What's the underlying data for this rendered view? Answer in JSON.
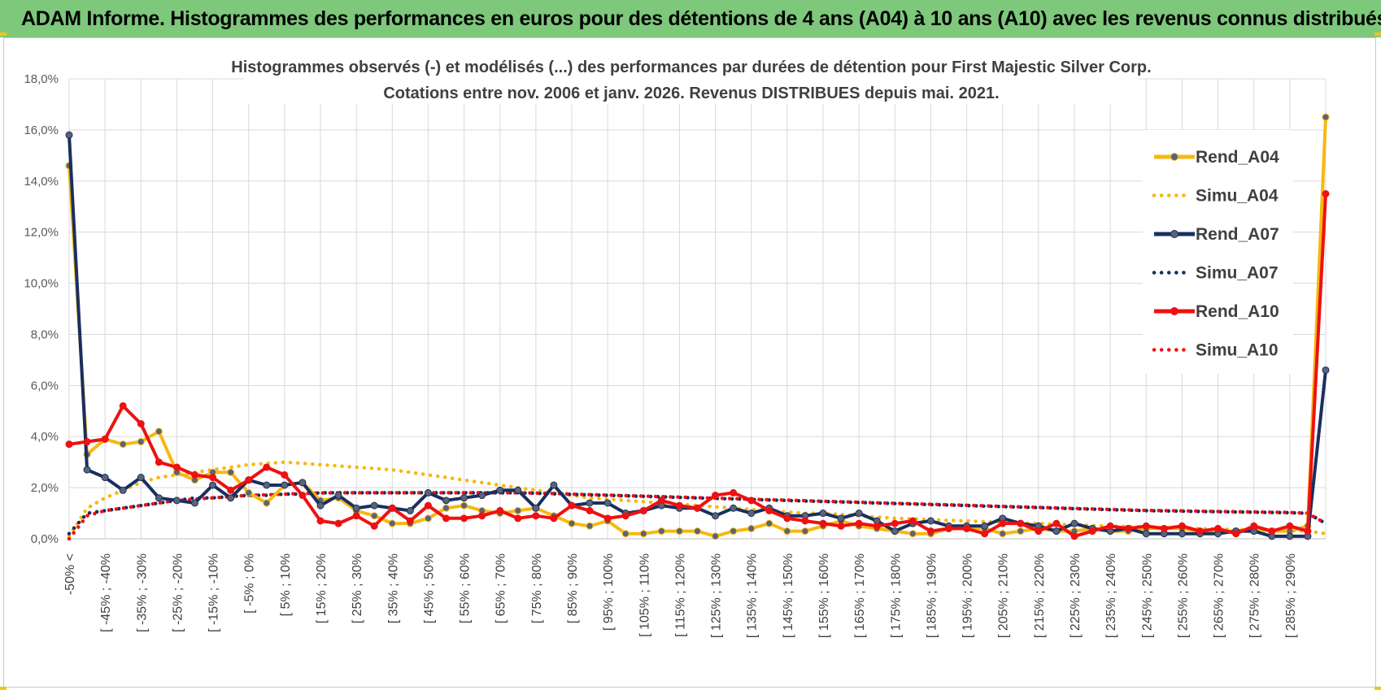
{
  "banner": {
    "title": "ADAM Informe. Histogrammes des performances en euros pour des détentions de 4 ans (A04) à 10 ans (A10) avec les revenus connus distribués"
  },
  "colors": {
    "banner": "#7dc87b",
    "yellow": "#f6b811",
    "navy": "#1a2f5e",
    "red": "#ee1111",
    "grid": "#d9d9d9"
  },
  "chart_data": {
    "type": "line",
    "title": [
      "Histogrammes observés (-) et modélisés (...) des performances par durées de détention pour First Majestic Silver Corp.",
      "Cotations entre nov. 2006 et janv. 2026. Revenus DISTRIBUES depuis mai. 2021."
    ],
    "xlabel": "",
    "ylabel": "",
    "ylim": [
      0,
      18
    ],
    "y_unit": "%",
    "yticks": [
      "0,0%",
      "2,0%",
      "4,0%",
      "6,0%",
      "8,0%",
      "10,0%",
      "12,0%",
      "14,0%",
      "16,0%",
      "18,0%"
    ],
    "grid": true,
    "legend_position": "top-right",
    "x_tick_labels": [
      "-50% <",
      "[ -45% ; -40%",
      "[ -35% ; -30%",
      "[ -25% ; -20%",
      "[ -15% ; -10%",
      "[ -5% ; 0%",
      "[ 5% ; 10%",
      "[ 15% ; 20%",
      "[ 25% ; 30%",
      "[ 35% ; 40%",
      "[ 45% ; 50%",
      "[ 55% ; 60%",
      "[ 65% ; 70%",
      "[ 75% ; 80%",
      "[ 85% ; 90%",
      "[ 95% ; 100%",
      "[ 105% ; 110%",
      "[ 115% ; 120%",
      "[ 125% ; 130%",
      "[ 135% ; 140%",
      "[ 145% ; 150%",
      "[ 155% ; 160%",
      "[ 165% ; 170%",
      "[ 175% ; 180%",
      "[ 185% ; 190%",
      "[ 195% ; 200%",
      "[ 205% ; 210%",
      "[ 215% ; 220%",
      "[ 225% ; 230%",
      "[ 235% ; 240%",
      "[ 245% ; 250%",
      "[ 255% ; 260%",
      "[ 265% ; 270%",
      "[ 275% ; 280%",
      "[ 285% ; 290%"
    ],
    "x_tick_every": 2,
    "n_points": 71,
    "series": [
      {
        "name": "Rend_A04",
        "style": "solid",
        "color": "#f6b811",
        "values": [
          14.6,
          3.3,
          3.9,
          3.7,
          3.8,
          4.2,
          2.6,
          2.3,
          2.6,
          2.6,
          1.8,
          1.4,
          2.1,
          2.2,
          1.5,
          1.6,
          1.1,
          0.9,
          0.6,
          0.6,
          0.8,
          1.2,
          1.3,
          1.1,
          1.0,
          1.1,
          1.2,
          0.9,
          0.6,
          0.5,
          0.7,
          0.2,
          0.2,
          0.3,
          0.3,
          0.3,
          0.1,
          0.3,
          0.4,
          0.6,
          0.3,
          0.3,
          0.5,
          0.7,
          0.5,
          0.4,
          0.3,
          0.2,
          0.2,
          0.4,
          0.4,
          0.4,
          0.2,
          0.3,
          0.4,
          0.3,
          0.3,
          0.4,
          0.3,
          0.3,
          0.4,
          0.4,
          0.4,
          0.3,
          0.3,
          0.3,
          0.4,
          0.3,
          0.3,
          0.5,
          16.5
        ]
      },
      {
        "name": "Simu_A04",
        "style": "dotted",
        "color": "#f6b811",
        "values": [
          0.1,
          1.2,
          1.6,
          1.9,
          2.2,
          2.4,
          2.5,
          2.6,
          2.7,
          2.8,
          2.9,
          2.95,
          3.0,
          2.95,
          2.9,
          2.85,
          2.8,
          2.75,
          2.7,
          2.6,
          2.5,
          2.4,
          2.3,
          2.2,
          2.1,
          2.0,
          1.9,
          1.8,
          1.7,
          1.6,
          1.55,
          1.5,
          1.45,
          1.4,
          1.35,
          1.3,
          1.25,
          1.2,
          1.15,
          1.1,
          1.05,
          1.0,
          1.0,
          0.95,
          0.9,
          0.85,
          0.8,
          0.78,
          0.75,
          0.72,
          0.7,
          0.67,
          0.65,
          0.62,
          0.6,
          0.57,
          0.55,
          0.52,
          0.5,
          0.48,
          0.46,
          0.44,
          0.42,
          0.4,
          0.38,
          0.36,
          0.34,
          0.33,
          0.32,
          0.3,
          0.2
        ]
      },
      {
        "name": "Rend_A07",
        "style": "solid",
        "color": "#1a2f5e",
        "values": [
          15.8,
          2.7,
          2.4,
          1.9,
          2.4,
          1.6,
          1.5,
          1.4,
          2.1,
          1.6,
          2.3,
          2.1,
          2.1,
          2.2,
          1.3,
          1.7,
          1.2,
          1.3,
          1.2,
          1.1,
          1.8,
          1.5,
          1.6,
          1.7,
          1.9,
          1.9,
          1.2,
          2.1,
          1.3,
          1.4,
          1.4,
          1.0,
          1.1,
          1.3,
          1.2,
          1.2,
          0.9,
          1.2,
          1.0,
          1.2,
          0.9,
          0.9,
          1.0,
          0.8,
          1.0,
          0.7,
          0.3,
          0.6,
          0.7,
          0.5,
          0.5,
          0.5,
          0.8,
          0.6,
          0.5,
          0.3,
          0.6,
          0.4,
          0.3,
          0.4,
          0.2,
          0.2,
          0.2,
          0.2,
          0.2,
          0.3,
          0.3,
          0.1,
          0.1,
          0.1,
          6.6
        ]
      },
      {
        "name": "Simu_A07",
        "style": "dotted",
        "color": "#1a2f5e",
        "values": [
          0.2,
          1.0,
          1.1,
          1.2,
          1.3,
          1.4,
          1.5,
          1.6,
          1.6,
          1.65,
          1.7,
          1.7,
          1.75,
          1.75,
          1.8,
          1.8,
          1.8,
          1.8,
          1.8,
          1.8,
          1.8,
          1.8,
          1.8,
          1.8,
          1.8,
          1.8,
          1.78,
          1.76,
          1.74,
          1.72,
          1.7,
          1.68,
          1.66,
          1.64,
          1.62,
          1.6,
          1.58,
          1.56,
          1.54,
          1.52,
          1.5,
          1.48,
          1.46,
          1.44,
          1.42,
          1.4,
          1.38,
          1.36,
          1.34,
          1.32,
          1.3,
          1.28,
          1.26,
          1.24,
          1.22,
          1.2,
          1.18,
          1.16,
          1.14,
          1.12,
          1.1,
          1.09,
          1.08,
          1.07,
          1.06,
          1.05,
          1.04,
          1.03,
          1.02,
          1.0,
          0.6
        ]
      },
      {
        "name": "Rend_A10",
        "style": "solid",
        "color": "#ee1111",
        "values": [
          3.7,
          3.8,
          3.9,
          5.2,
          4.5,
          3.0,
          2.8,
          2.5,
          2.4,
          1.9,
          2.3,
          2.8,
          2.5,
          1.7,
          0.7,
          0.6,
          0.9,
          0.5,
          1.2,
          0.7,
          1.3,
          0.8,
          0.8,
          0.9,
          1.1,
          0.8,
          0.9,
          0.8,
          1.3,
          1.1,
          0.8,
          0.9,
          1.1,
          1.5,
          1.3,
          1.2,
          1.7,
          1.8,
          1.5,
          1.1,
          0.8,
          0.7,
          0.6,
          0.5,
          0.6,
          0.5,
          0.6,
          0.7,
          0.3,
          0.4,
          0.4,
          0.2,
          0.6,
          0.6,
          0.3,
          0.6,
          0.1,
          0.3,
          0.5,
          0.4,
          0.5,
          0.4,
          0.5,
          0.3,
          0.4,
          0.2,
          0.5,
          0.3,
          0.5,
          0.3,
          13.5
        ]
      },
      {
        "name": "Simu_A10",
        "style": "dotted",
        "color": "#ee1111",
        "values": [
          0.0,
          0.9,
          1.1,
          1.2,
          1.3,
          1.4,
          1.5,
          1.55,
          1.6,
          1.65,
          1.7,
          1.72,
          1.75,
          1.77,
          1.79,
          1.8,
          1.8,
          1.8,
          1.8,
          1.8,
          1.8,
          1.8,
          1.8,
          1.8,
          1.8,
          1.8,
          1.79,
          1.77,
          1.75,
          1.73,
          1.71,
          1.69,
          1.67,
          1.65,
          1.63,
          1.61,
          1.59,
          1.57,
          1.55,
          1.53,
          1.51,
          1.49,
          1.47,
          1.45,
          1.43,
          1.41,
          1.39,
          1.37,
          1.35,
          1.33,
          1.31,
          1.29,
          1.27,
          1.25,
          1.23,
          1.21,
          1.19,
          1.17,
          1.15,
          1.13,
          1.11,
          1.1,
          1.09,
          1.08,
          1.07,
          1.06,
          1.05,
          1.04,
          1.03,
          1.0,
          0.6
        ]
      }
    ]
  }
}
